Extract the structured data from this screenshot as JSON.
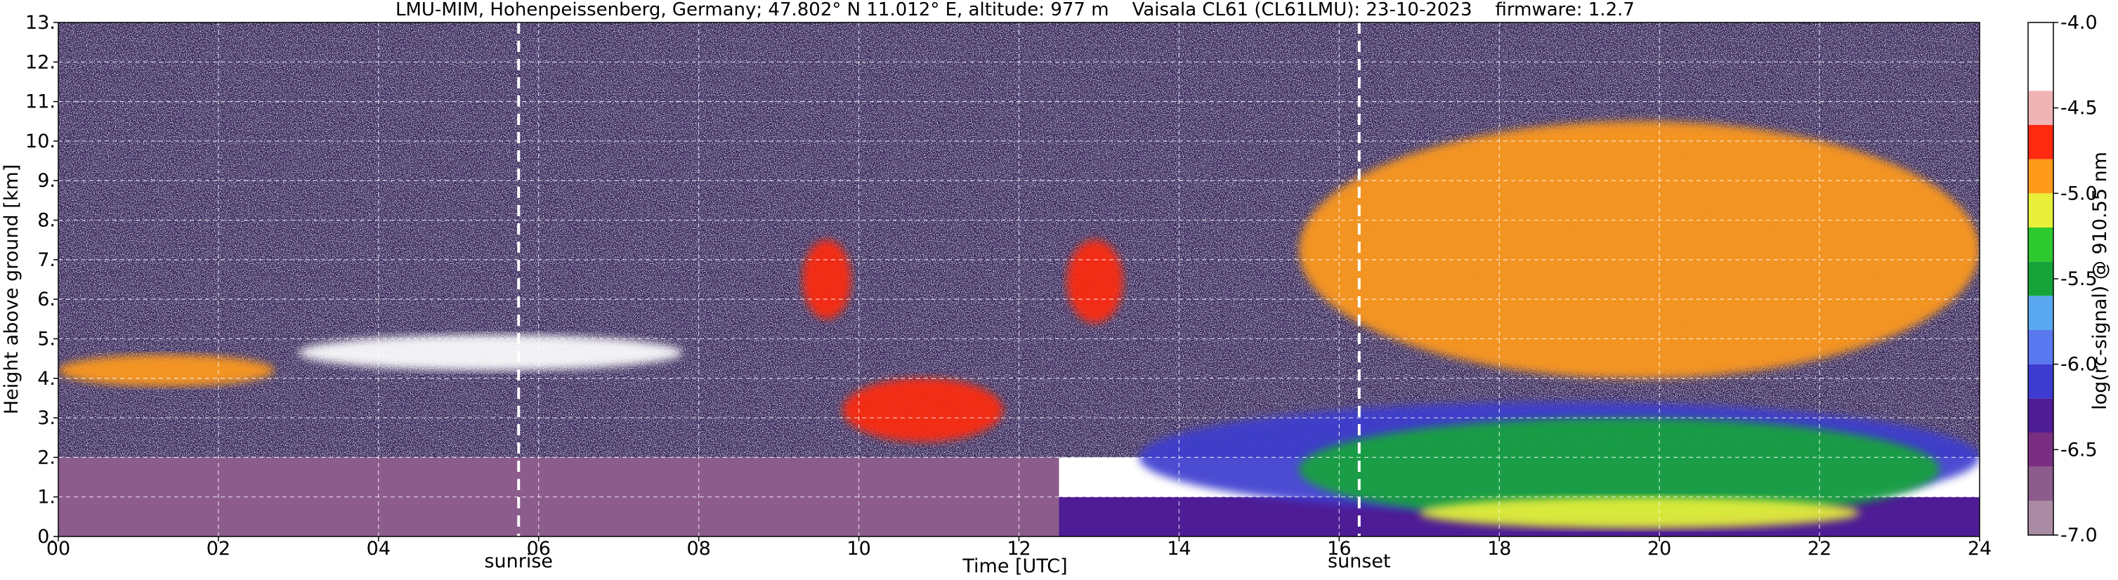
{
  "chart_data": {
    "type": "heatmap",
    "title": "LMU-MIM, Hohenpeissenberg, Germany; 47.802° N 11.012° E, altitude: 977 m    Vaisala CL61 (CL61LMU): 23-10-2023    firmware: 1.2.7",
    "xlabel": "Time [UTC]",
    "ylabel": "Height above ground [km]",
    "colorbar_label": "log(rc-signal) @ 910.55 nm",
    "xlim": [
      0,
      24
    ],
    "ylim": [
      0,
      13
    ],
    "clim": [
      -7.0,
      -4.0
    ],
    "grid": true,
    "x_ticks": [
      {
        "value": 0,
        "label": "00"
      },
      {
        "value": 2,
        "label": "02"
      },
      {
        "value": 4,
        "label": "04"
      },
      {
        "value": 6,
        "label": "06"
      },
      {
        "value": 8,
        "label": "08"
      },
      {
        "value": 10,
        "label": "10"
      },
      {
        "value": 12,
        "label": "12"
      },
      {
        "value": 14,
        "label": "14"
      },
      {
        "value": 16,
        "label": "16"
      },
      {
        "value": 18,
        "label": "18"
      },
      {
        "value": 20,
        "label": "20"
      },
      {
        "value": 22,
        "label": "22"
      },
      {
        "value": 24,
        "label": "24"
      }
    ],
    "y_ticks": [
      {
        "value": 0,
        "label": "0."
      },
      {
        "value": 1,
        "label": "1."
      },
      {
        "value": 2,
        "label": "2."
      },
      {
        "value": 3,
        "label": "3."
      },
      {
        "value": 4,
        "label": "4."
      },
      {
        "value": 5,
        "label": "5."
      },
      {
        "value": 6,
        "label": "6."
      },
      {
        "value": 7,
        "label": "7."
      },
      {
        "value": 8,
        "label": "8."
      },
      {
        "value": 9,
        "label": "9."
      },
      {
        "value": 10,
        "label": "10."
      },
      {
        "value": 11,
        "label": "11."
      },
      {
        "value": 12,
        "label": "12."
      },
      {
        "value": 13,
        "label": "13."
      }
    ],
    "colorbar_ticks": [
      {
        "value": -4.0,
        "label": "-4.0"
      },
      {
        "value": -4.5,
        "label": "-4.5"
      },
      {
        "value": -5.0,
        "label": "-5.0"
      },
      {
        "value": -5.5,
        "label": "-5.5"
      },
      {
        "value": -6.0,
        "label": "-6.0"
      },
      {
        "value": -6.5,
        "label": "-6.5"
      },
      {
        "value": -7.0,
        "label": "-7.0"
      }
    ],
    "annotations": [
      {
        "x": 5.75,
        "label": "sunrise"
      },
      {
        "x": 16.25,
        "label": "sunset"
      }
    ],
    "colormap": [
      {
        "from": -7.0,
        "to": -6.8,
        "color": "#a98aa3"
      },
      {
        "from": -6.8,
        "to": -6.6,
        "color": "#8c5c8c"
      },
      {
        "from": -6.6,
        "to": -6.4,
        "color": "#7a2e82"
      },
      {
        "from": -6.4,
        "to": -6.2,
        "color": "#4e1c95"
      },
      {
        "from": -6.2,
        "to": -6.0,
        "color": "#3c3cd0"
      },
      {
        "from": -6.0,
        "to": -5.8,
        "color": "#5a78f0"
      },
      {
        "from": -5.8,
        "to": -5.6,
        "color": "#5aa8f0"
      },
      {
        "from": -5.6,
        "to": -5.4,
        "color": "#16a43a"
      },
      {
        "from": -5.4,
        "to": -5.2,
        "color": "#2ec92e"
      },
      {
        "from": -5.2,
        "to": -5.0,
        "color": "#e8f03a"
      },
      {
        "from": -5.0,
        "to": -4.8,
        "color": "#ff9a1a"
      },
      {
        "from": -4.8,
        "to": -4.6,
        "color": "#ff2a10"
      },
      {
        "from": -4.6,
        "to": -4.4,
        "color": "#f0b4b4"
      },
      {
        "from": -4.4,
        "to": -4.0,
        "color": "#ffffff"
      }
    ],
    "features": [
      {
        "name": "background noise",
        "x": [
          0,
          24
        ],
        "y": [
          2.0,
          13
        ],
        "value": -6.9
      },
      {
        "name": "near-surface layer night",
        "x": [
          0,
          12.5
        ],
        "y": [
          0,
          2.0
        ],
        "value": -6.7
      },
      {
        "name": "near-surface layer day",
        "x": [
          12.5,
          24
        ],
        "y": [
          0,
          1.0
        ],
        "value": -6.3
      },
      {
        "name": "boundary layer blue",
        "x": [
          13.5,
          24
        ],
        "y": [
          0.6,
          3.4
        ],
        "value": -6.0
      },
      {
        "name": "boundary layer green",
        "x": [
          15.5,
          23.5
        ],
        "y": [
          0.4,
          3.0
        ],
        "value": -5.4
      },
      {
        "name": "boundary layer yellow",
        "x": [
          17.0,
          22.5
        ],
        "y": [
          0.2,
          1.0
        ],
        "value": -5.1
      },
      {
        "name": "cloud base early",
        "x": [
          0,
          2.7
        ],
        "y": [
          3.8,
          4.6
        ],
        "value": -4.8
      },
      {
        "name": "cloud layer white",
        "x": [
          3.0,
          7.8
        ],
        "y": [
          4.2,
          5.1
        ],
        "value": -4.1
      },
      {
        "name": "fall streak 10-12 h",
        "x": [
          9.8,
          11.8
        ],
        "y": [
          2.4,
          4.0
        ],
        "value": -4.7
      },
      {
        "name": "fall streak 09 h",
        "x": [
          9.3,
          9.9
        ],
        "y": [
          5.5,
          7.5
        ],
        "value": -4.6
      },
      {
        "name": "fall streak 12-13 h",
        "x": [
          12.6,
          13.3
        ],
        "y": [
          5.4,
          7.5
        ],
        "value": -4.6
      },
      {
        "name": "high cirrus",
        "x": [
          15.5,
          24
        ],
        "y": [
          4.0,
          10.5
        ],
        "value": -4.8
      }
    ]
  }
}
